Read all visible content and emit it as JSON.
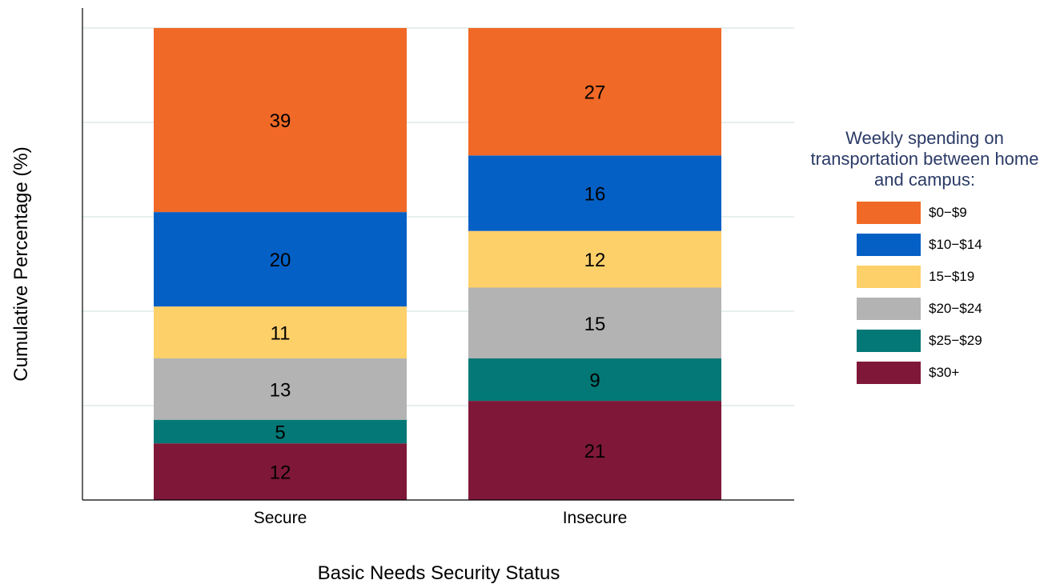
{
  "chart_data": {
    "type": "bar",
    "stacked": true,
    "categories": [
      "Secure",
      "Insecure"
    ],
    "series": [
      {
        "name": "$30+",
        "color": "#7f1838",
        "values": [
          12,
          21
        ]
      },
      {
        "name": "$25−$29",
        "color": "#047876",
        "values": [
          5,
          9
        ]
      },
      {
        "name": "$20−$24",
        "color": "#b3b3b3",
        "values": [
          13,
          15
        ]
      },
      {
        "name": "15−$19",
        "color": "#fed06a",
        "values": [
          11,
          12
        ]
      },
      {
        "name": "$10−$14",
        "color": "#0560c5",
        "values": [
          20,
          16
        ]
      },
      {
        "name": "$0−$9",
        "color": "#f06927",
        "values": [
          39,
          27
        ]
      }
    ],
    "xlabel": "Basic Needs Security Status",
    "ylabel": "Cumulative Percentage (%)",
    "ylim": [
      0,
      100
    ],
    "grid": true,
    "legend_position": "right",
    "legend_title": "Weekly spending on transportation between home and campus:"
  }
}
